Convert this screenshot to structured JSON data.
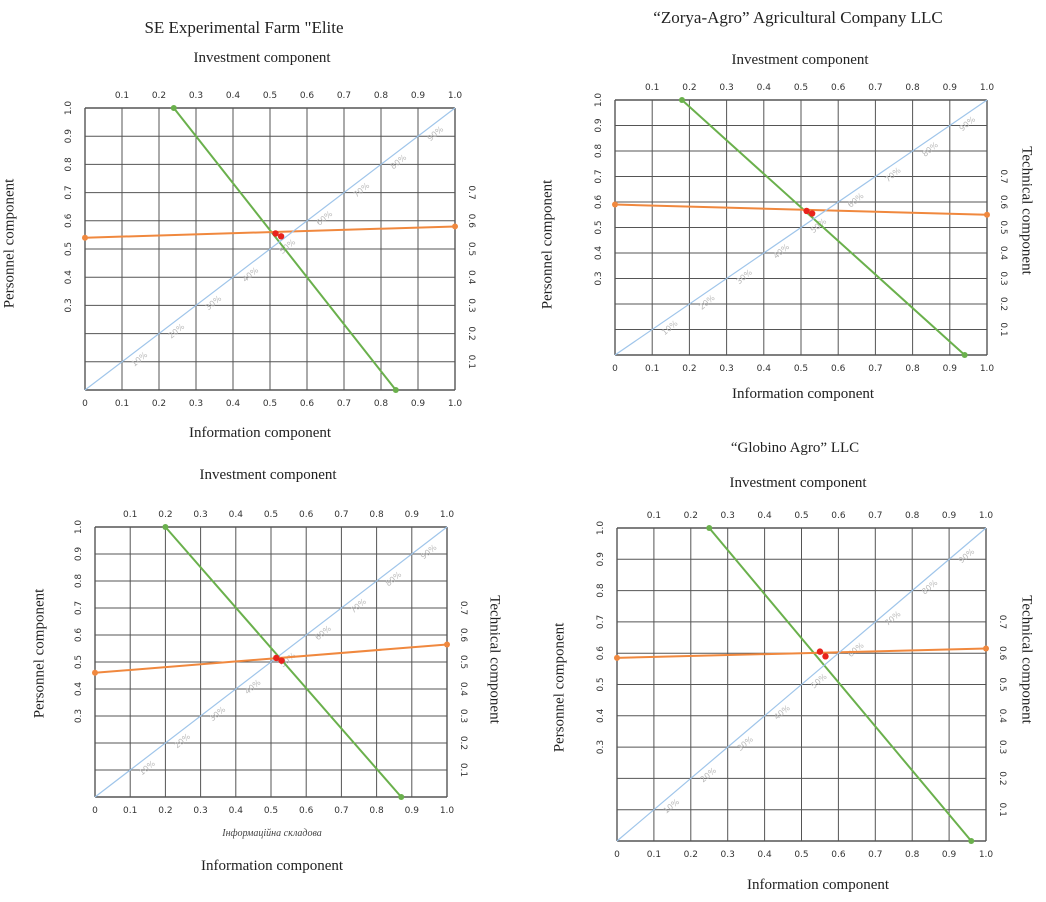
{
  "labels": {
    "top": "Investment component",
    "bottom": "Information component",
    "left": "Personnel component",
    "right": "Technical component"
  },
  "ticks": {
    "top": [
      "0.1",
      "0.2",
      "0.3",
      "0.4",
      "0.5",
      "0.6",
      "0.7",
      "0.8",
      "0.9",
      "1.0"
    ],
    "bottom": [
      "0",
      "0.1",
      "0.2",
      "0.3",
      "0.4",
      "0.5",
      "0.6",
      "0.7",
      "0.8",
      "0.9",
      "1.0"
    ],
    "left": [
      "1.0",
      "0.9",
      "0.8",
      "0.7",
      "0.6",
      "0.5",
      "0.4",
      "0.3"
    ],
    "right": [
      "0.7",
      "0.6",
      "0.5",
      "0.4",
      "0.3",
      "0.2",
      "0.1"
    ],
    "diag": [
      "10%",
      "20%",
      "30%",
      "40%",
      "50%",
      "60%",
      "70%",
      "80%",
      "90%"
    ]
  },
  "colors": {
    "investment": "#6ab04c",
    "personnel_technical": "#f0883e",
    "diagonal": "#9fc5ea",
    "point": "#e8231c",
    "grid": "#555555"
  },
  "chart_data": [
    {
      "type": "scatter",
      "title": "SE Experimental Farm \"Elite",
      "note": "",
      "xlabel": "Information component",
      "ylabel": "Personnel component",
      "xlim": [
        0,
        1
      ],
      "ylim": [
        0,
        1
      ],
      "grid": true,
      "series": [
        {
          "role": "investment",
          "points": [
            [
              0.24,
              1.0
            ],
            [
              0.84,
              0.0
            ]
          ]
        },
        {
          "role": "personnel-technical",
          "points": [
            [
              0.0,
              0.54
            ],
            [
              1.0,
              0.58
            ]
          ]
        },
        {
          "role": "diagonal",
          "points": [
            [
              0.0,
              0.0
            ],
            [
              1.0,
              1.0
            ]
          ]
        }
      ],
      "intersections": [
        [
          0.515,
          0.555
        ],
        [
          0.53,
          0.545
        ]
      ]
    },
    {
      "type": "scatter",
      "title": "“Zorya-Agro” Agricultural Company LLC",
      "note": "",
      "xlabel": "Information component",
      "ylabel": "Personnel component",
      "xlim": [
        0,
        1
      ],
      "ylim": [
        0,
        1
      ],
      "grid": true,
      "series": [
        {
          "role": "investment",
          "points": [
            [
              0.18,
              1.0
            ],
            [
              0.94,
              0.0
            ]
          ]
        },
        {
          "role": "personnel-technical",
          "points": [
            [
              0.0,
              0.59
            ],
            [
              1.0,
              0.55
            ]
          ]
        },
        {
          "role": "diagonal",
          "points": [
            [
              0.0,
              0.0
            ],
            [
              1.0,
              1.0
            ]
          ]
        }
      ],
      "intersections": [
        [
          0.515,
          0.565
        ],
        [
          0.53,
          0.555
        ]
      ]
    },
    {
      "type": "scatter",
      "title": "",
      "note": "Інформаційна складова",
      "xlabel": "Information component",
      "ylabel": "Personnel component",
      "xlim": [
        0,
        1
      ],
      "ylim": [
        0,
        1
      ],
      "grid": true,
      "series": [
        {
          "role": "investment",
          "points": [
            [
              0.2,
              1.0
            ],
            [
              0.87,
              0.0
            ]
          ]
        },
        {
          "role": "personnel-technical",
          "points": [
            [
              0.0,
              0.46
            ],
            [
              1.0,
              0.565
            ]
          ]
        },
        {
          "role": "diagonal",
          "points": [
            [
              0.0,
              0.0
            ],
            [
              1.0,
              1.0
            ]
          ]
        }
      ],
      "intersections": [
        [
          0.515,
          0.515
        ],
        [
          0.53,
          0.505
        ]
      ]
    },
    {
      "type": "scatter",
      "title": "“Globino Agro” LLC",
      "note": "",
      "xlabel": "Information component",
      "ylabel": "Personnel component",
      "xlim": [
        0,
        1
      ],
      "ylim": [
        0,
        1
      ],
      "grid": true,
      "series": [
        {
          "role": "investment",
          "points": [
            [
              0.25,
              1.0
            ],
            [
              0.96,
              0.0
            ]
          ]
        },
        {
          "role": "personnel-technical",
          "points": [
            [
              0.0,
              0.585
            ],
            [
              1.0,
              0.615
            ]
          ]
        },
        {
          "role": "diagonal",
          "points": [
            [
              0.0,
              0.0
            ],
            [
              1.0,
              1.0
            ]
          ]
        }
      ],
      "intersections": [
        [
          0.55,
          0.605
        ],
        [
          0.565,
          0.59
        ]
      ]
    }
  ]
}
